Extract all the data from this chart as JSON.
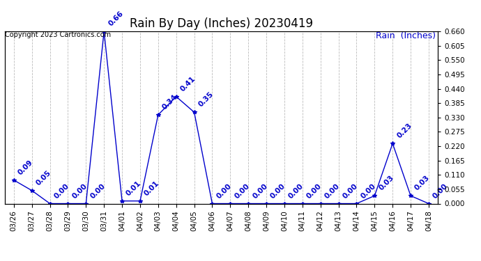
{
  "title": "Rain By Day (Inches) 20230419",
  "legend_label": "Rain  (Inches)",
  "copyright_text": "Copyright 2023 Cartronics.com",
  "line_color": "#0000cc",
  "background_color": "#ffffff",
  "grid_color": "#bbbbbb",
  "dates": [
    "03/26",
    "03/27",
    "03/28",
    "03/29",
    "03/30",
    "03/31",
    "04/01",
    "04/02",
    "04/03",
    "04/04",
    "04/05",
    "04/06",
    "04/07",
    "04/08",
    "04/09",
    "04/10",
    "04/11",
    "04/12",
    "04/13",
    "04/14",
    "04/15",
    "04/16",
    "04/17",
    "04/18"
  ],
  "values": [
    0.09,
    0.05,
    0.0,
    0.0,
    0.0,
    0.66,
    0.01,
    0.01,
    0.34,
    0.41,
    0.35,
    0.0,
    0.0,
    0.0,
    0.0,
    0.0,
    0.0,
    0.0,
    0.0,
    0.0,
    0.03,
    0.23,
    0.03,
    0.0
  ],
  "ylim_max": 0.66,
  "yticks": [
    0.0,
    0.055,
    0.11,
    0.165,
    0.22,
    0.275,
    0.33,
    0.385,
    0.44,
    0.495,
    0.55,
    0.605,
    0.66
  ],
  "label_color": "#0000cc",
  "title_fontsize": 12,
  "tick_fontsize": 7.5,
  "annot_fontsize": 7.5,
  "legend_fontsize": 9,
  "copyright_fontsize": 7,
  "marker": "*",
  "marker_size": 4
}
